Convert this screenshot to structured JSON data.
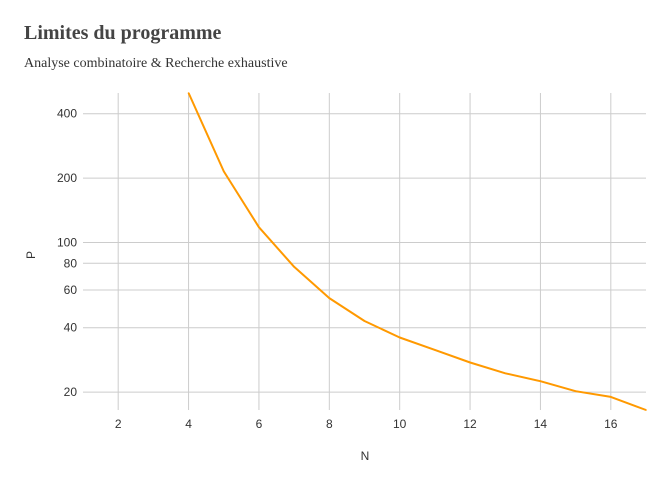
{
  "chart_data": {
    "type": "line",
    "title": "Limites du programme",
    "subtitle": "Analyse combinatoire & Recherche exhaustive",
    "xlabel": "N",
    "ylabel": "P",
    "x_ticks": [
      2,
      4,
      6,
      8,
      10,
      12,
      14,
      16
    ],
    "x_tick_labels": [
      "2",
      "4",
      "6",
      "8",
      "10",
      "12",
      "14",
      "16"
    ],
    "y_ticks": [
      20,
      40,
      60,
      80,
      100,
      200,
      400
    ],
    "y_tick_labels": [
      "20",
      "40",
      "60",
      "80",
      "100",
      "200",
      "400"
    ],
    "yscale": "log",
    "xlim": [
      1,
      17
    ],
    "ylim": [
      16.5,
      500
    ],
    "grid": true,
    "color": "#ff9900",
    "series": [
      {
        "x": [
          4,
          5,
          6,
          7,
          8,
          9,
          10,
          11,
          12,
          13,
          14,
          15,
          16,
          17
        ],
        "values": [
          500,
          215,
          118,
          77,
          55,
          43,
          36,
          31.5,
          27.5,
          24.5,
          22.5,
          20.2,
          19,
          16.5
        ]
      }
    ]
  }
}
